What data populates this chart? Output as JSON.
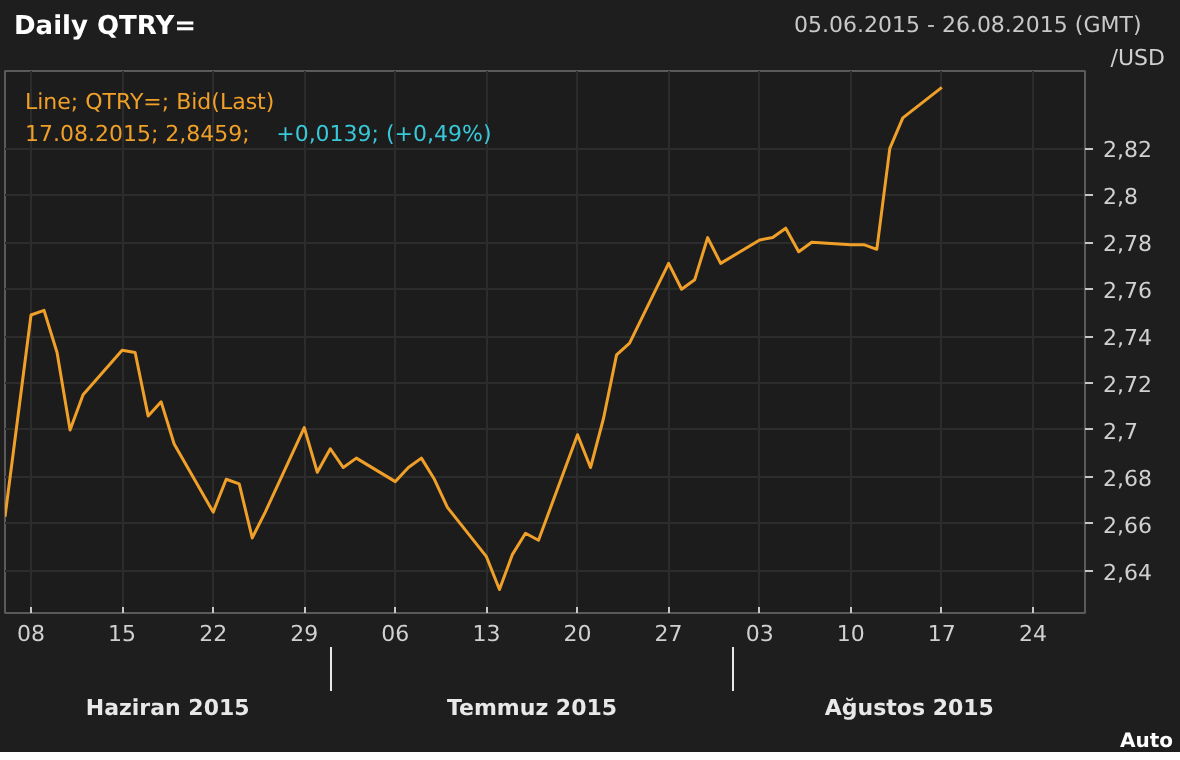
{
  "chart_data": {
    "type": "line",
    "title": "Daily QTRY=",
    "subtitle": "05.06.2015 - 26.08.2015 (GMT)",
    "ylabel": "/USD",
    "x": [
      "2015-06-06",
      "2015-06-08",
      "2015-06-09",
      "2015-06-10",
      "2015-06-11",
      "2015-06-12",
      "2015-06-15",
      "2015-06-16",
      "2015-06-17",
      "2015-06-18",
      "2015-06-19",
      "2015-06-22",
      "2015-06-23",
      "2015-06-24",
      "2015-06-25",
      "2015-06-26",
      "2015-06-29",
      "2015-06-30",
      "2015-07-01",
      "2015-07-02",
      "2015-07-03",
      "2015-07-06",
      "2015-07-07",
      "2015-07-08",
      "2015-07-09",
      "2015-07-10",
      "2015-07-13",
      "2015-07-14",
      "2015-07-15",
      "2015-07-16",
      "2015-07-17",
      "2015-07-20",
      "2015-07-21",
      "2015-07-22",
      "2015-07-23",
      "2015-07-24",
      "2015-07-27",
      "2015-07-28",
      "2015-07-29",
      "2015-07-30",
      "2015-07-31",
      "2015-08-03",
      "2015-08-04",
      "2015-08-05",
      "2015-08-06",
      "2015-08-07",
      "2015-08-10",
      "2015-08-11",
      "2015-08-12",
      "2015-08-13",
      "2015-08-14",
      "2015-08-17"
    ],
    "series": [
      {
        "name": "Line; QTRY=; Bid(Last)",
        "color": "#f0a028",
        "values": [
          2.663,
          2.749,
          2.751,
          2.733,
          2.7,
          2.715,
          2.734,
          2.733,
          2.706,
          2.712,
          2.694,
          2.665,
          2.679,
          2.677,
          2.654,
          2.665,
          2.701,
          2.682,
          2.692,
          2.684,
          2.688,
          2.678,
          2.684,
          2.688,
          2.679,
          2.667,
          2.646,
          2.632,
          2.647,
          2.656,
          2.653,
          2.698,
          2.684,
          2.705,
          2.732,
          2.737,
          2.771,
          2.76,
          2.764,
          2.782,
          2.771,
          2.781,
          2.782,
          2.786,
          2.776,
          2.78,
          2.779,
          2.779,
          2.777,
          2.82,
          2.833,
          2.846
        ]
      }
    ],
    "xlim": [
      "2015-06-06",
      "2015-08-28"
    ],
    "xticks": [
      {
        "value": "2015-06-08",
        "label": "08"
      },
      {
        "value": "2015-06-15",
        "label": "15"
      },
      {
        "value": "2015-06-22",
        "label": "22"
      },
      {
        "value": "2015-06-29",
        "label": "29"
      },
      {
        "value": "2015-07-06",
        "label": "06"
      },
      {
        "value": "2015-07-13",
        "label": "13"
      },
      {
        "value": "2015-07-20",
        "label": "20"
      },
      {
        "value": "2015-07-27",
        "label": "27"
      },
      {
        "value": "2015-08-03",
        "label": "03"
      },
      {
        "value": "2015-08-10",
        "label": "10"
      },
      {
        "value": "2015-08-17",
        "label": "17"
      },
      {
        "value": "2015-08-24",
        "label": "24"
      }
    ],
    "ylim": [
      2.622,
      2.853
    ],
    "yticks": [
      {
        "value": 2.64,
        "label": "2,64"
      },
      {
        "value": 2.66,
        "label": "2,66"
      },
      {
        "value": 2.68,
        "label": "2,68"
      },
      {
        "value": 2.7,
        "label": "2,7"
      },
      {
        "value": 2.72,
        "label": "2,72"
      },
      {
        "value": 2.74,
        "label": "2,74"
      },
      {
        "value": 2.76,
        "label": "2,76"
      },
      {
        "value": 2.78,
        "label": "2,78"
      },
      {
        "value": 2.8,
        "label": "2,8"
      },
      {
        "value": 2.82,
        "label": "2,82"
      }
    ],
    "annotations": [
      "17.08.2015; 2,8459;",
      "+0,0139; (+0,49%)",
      "Haziran 2015",
      "Temmuz 2015",
      "Ağustos 2015",
      "Auto"
    ],
    "grid": true,
    "legend": "top left",
    "marker": "none",
    "line_style": "solid"
  }
}
